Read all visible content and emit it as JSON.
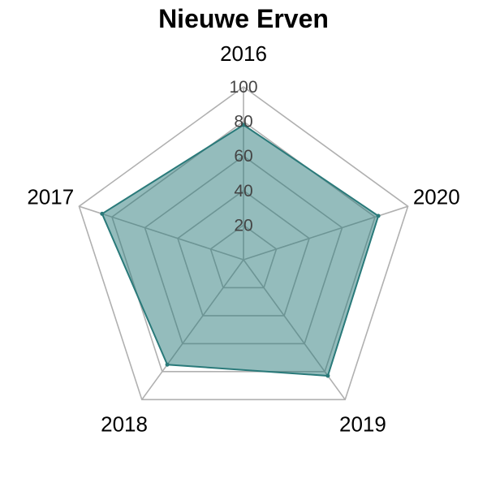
{
  "chart_data": {
    "type": "radar",
    "title": "Nieuwe Erven",
    "categories": [
      "2016",
      "2020",
      "2019",
      "2018",
      "2017"
    ],
    "series": [
      {
        "values": [
          78,
          82,
          83,
          75,
          86
        ],
        "color": "#2a7a7a",
        "fill_color": "#2a7a7a",
        "fill_opacity": 0.5
      }
    ],
    "r_ticks": [
      20,
      40,
      60,
      80,
      100
    ],
    "r_tick_labels": [
      "20",
      "40",
      "60",
      "80",
      "100"
    ],
    "rlim": [
      0,
      100
    ],
    "grid": true,
    "legend": false
  }
}
